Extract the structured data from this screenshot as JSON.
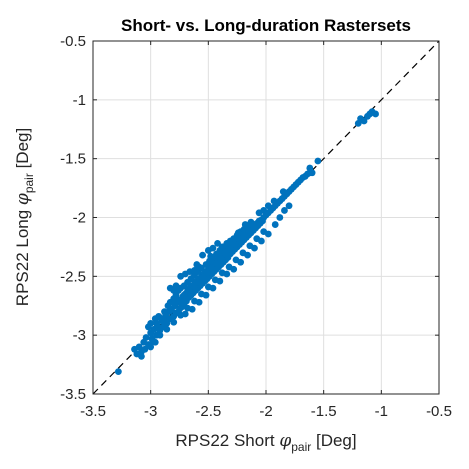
{
  "chart_data": {
    "type": "scatter",
    "title": "Short- vs. Long-duration Rastersets",
    "xlabel": {
      "prefix": "RPS22 Short ",
      "symbol": "φ",
      "subscript": "pair",
      "suffix": " [Deg]"
    },
    "ylabel": {
      "prefix": "RPS22 Long ",
      "symbol": "φ",
      "subscript": "pair",
      "suffix": " [Deg]"
    },
    "xlim": [
      -3.5,
      -0.5
    ],
    "ylim": [
      -3.5,
      -0.5
    ],
    "xticks": [
      -3.5,
      -3,
      -2.5,
      -2,
      -1.5,
      -1,
      -0.5
    ],
    "yticks": [
      -3.5,
      -3,
      -2.5,
      -2,
      -1.5,
      -1,
      -0.5
    ],
    "xtick_labels": [
      "-3.5",
      "-3",
      "-2.5",
      "-2",
      "-1.5",
      "-1",
      "-0.5"
    ],
    "ytick_labels": [
      "-3.5",
      "-3",
      "-2.5",
      "-2",
      "-1.5",
      "-1",
      "-0.5"
    ],
    "grid": true,
    "reference_line": {
      "style": "dashed",
      "color": "#000000",
      "from": [
        -3.5,
        -3.5
      ],
      "to": [
        -0.5,
        -0.5
      ]
    },
    "marker_color": "#0072BD",
    "points": [
      [
        -3.28,
        -3.31
      ],
      [
        -3.1,
        -3.1
      ],
      [
        -3.08,
        -3.14
      ],
      [
        -3.06,
        -3.06
      ],
      [
        -3.04,
        -3.02
      ],
      [
        -3.02,
        -3.08
      ],
      [
        -3.0,
        -2.98
      ],
      [
        -2.99,
        -3.03
      ],
      [
        -2.97,
        -2.95
      ],
      [
        -2.95,
        -3.0
      ],
      [
        -2.94,
        -2.92
      ],
      [
        -2.92,
        -2.96
      ],
      [
        -2.9,
        -2.88
      ],
      [
        -2.89,
        -2.93
      ],
      [
        -2.87,
        -2.85
      ],
      [
        -2.86,
        -2.9
      ],
      [
        -2.84,
        -2.8
      ],
      [
        -2.83,
        -2.86
      ],
      [
        -2.82,
        -2.78
      ],
      [
        -2.8,
        -2.84
      ],
      [
        -2.79,
        -2.75
      ],
      [
        -2.78,
        -2.81
      ],
      [
        -2.76,
        -2.72
      ],
      [
        -2.75,
        -2.78
      ],
      [
        -2.74,
        -2.7
      ],
      [
        -2.73,
        -2.76
      ],
      [
        -2.72,
        -2.67
      ],
      [
        -2.71,
        -2.73
      ],
      [
        -2.7,
        -2.65
      ],
      [
        -2.69,
        -2.71
      ],
      [
        -2.68,
        -2.62
      ],
      [
        -2.67,
        -2.68
      ],
      [
        -2.66,
        -2.6
      ],
      [
        -2.65,
        -2.66
      ],
      [
        -2.64,
        -2.58
      ],
      [
        -2.63,
        -2.64
      ],
      [
        -2.62,
        -2.56
      ],
      [
        -2.61,
        -2.62
      ],
      [
        -2.6,
        -2.54
      ],
      [
        -2.59,
        -2.6
      ],
      [
        -2.58,
        -2.52
      ],
      [
        -2.57,
        -2.58
      ],
      [
        -2.56,
        -2.5
      ],
      [
        -2.55,
        -2.56
      ],
      [
        -2.54,
        -2.48
      ],
      [
        -2.53,
        -2.54
      ],
      [
        -2.52,
        -2.46
      ],
      [
        -2.51,
        -2.52
      ],
      [
        -2.5,
        -2.44
      ],
      [
        -2.49,
        -2.5
      ],
      [
        -2.48,
        -2.42
      ],
      [
        -2.47,
        -2.48
      ],
      [
        -2.46,
        -2.4
      ],
      [
        -2.45,
        -2.46
      ],
      [
        -2.44,
        -2.38
      ],
      [
        -2.43,
        -2.44
      ],
      [
        -2.42,
        -2.36
      ],
      [
        -2.41,
        -2.42
      ],
      [
        -2.4,
        -2.34
      ],
      [
        -2.39,
        -2.4
      ],
      [
        -2.38,
        -2.32
      ],
      [
        -2.37,
        -2.38
      ],
      [
        -2.36,
        -2.3
      ],
      [
        -2.35,
        -2.36
      ],
      [
        -2.34,
        -2.28
      ],
      [
        -2.33,
        -2.34
      ],
      [
        -2.32,
        -2.26
      ],
      [
        -2.31,
        -2.31
      ],
      [
        -2.3,
        -2.25
      ],
      [
        -2.29,
        -2.29
      ],
      [
        -2.28,
        -2.23
      ],
      [
        -2.27,
        -2.27
      ],
      [
        -2.26,
        -2.21
      ],
      [
        -2.25,
        -2.25
      ],
      [
        -2.24,
        -2.19
      ],
      [
        -2.23,
        -2.23
      ],
      [
        -2.22,
        -2.17
      ],
      [
        -2.21,
        -2.21
      ],
      [
        -2.2,
        -2.16
      ],
      [
        -2.19,
        -2.19
      ],
      [
        -2.18,
        -2.14
      ],
      [
        -2.17,
        -2.17
      ],
      [
        -2.16,
        -2.12
      ],
      [
        -2.15,
        -2.15
      ],
      [
        -2.14,
        -2.1
      ],
      [
        -2.13,
        -2.13
      ],
      [
        -2.12,
        -2.09
      ],
      [
        -2.11,
        -2.11
      ],
      [
        -2.1,
        -2.07
      ],
      [
        -2.09,
        -2.09
      ],
      [
        -2.08,
        -2.05
      ],
      [
        -2.07,
        -2.07
      ],
      [
        -2.06,
        -2.03
      ],
      [
        -2.05,
        -2.05
      ],
      [
        -2.04,
        -2.02
      ],
      [
        -2.03,
        -2.03
      ],
      [
        -2.02,
        -2.0
      ],
      [
        -2.0,
        -1.98
      ],
      [
        -1.98,
        -1.96
      ],
      [
        -1.96,
        -1.94
      ],
      [
        -1.94,
        -1.92
      ],
      [
        -1.92,
        -1.9
      ],
      [
        -1.9,
        -1.88
      ],
      [
        -1.88,
        -1.86
      ],
      [
        -1.86,
        -1.84
      ],
      [
        -1.84,
        -1.82
      ],
      [
        -1.82,
        -1.8
      ],
      [
        -1.8,
        -1.78
      ],
      [
        -1.78,
        -1.76
      ],
      [
        -1.76,
        -1.74
      ],
      [
        -1.74,
        -1.72
      ],
      [
        -1.72,
        -1.7
      ],
      [
        -1.7,
        -1.68
      ],
      [
        -1.68,
        -1.66
      ],
      [
        -1.66,
        -1.65
      ],
      [
        -1.64,
        -1.63
      ],
      [
        -1.62,
        -1.62
      ],
      [
        -1.55,
        -1.52
      ],
      [
        -1.2,
        -1.2
      ],
      [
        -1.18,
        -1.16
      ],
      [
        -1.15,
        -1.18
      ],
      [
        -1.12,
        -1.14
      ],
      [
        -1.1,
        -1.12
      ],
      [
        -1.08,
        -1.1
      ],
      [
        -1.05,
        -1.12
      ],
      [
        -2.88,
        -2.8
      ],
      [
        -2.85,
        -2.75
      ],
      [
        -2.83,
        -2.72
      ],
      [
        -2.8,
        -2.69
      ],
      [
        -2.78,
        -2.66
      ],
      [
        -2.76,
        -2.62
      ],
      [
        -2.74,
        -2.6
      ],
      [
        -2.71,
        -2.58
      ],
      [
        -2.68,
        -2.55
      ],
      [
        -2.65,
        -2.52
      ],
      [
        -2.62,
        -2.49
      ],
      [
        -2.59,
        -2.46
      ],
      [
        -2.56,
        -2.43
      ],
      [
        -2.52,
        -2.4
      ],
      [
        -2.49,
        -2.37
      ],
      [
        -2.46,
        -2.34
      ],
      [
        -2.43,
        -2.31
      ],
      [
        -2.4,
        -2.28
      ],
      [
        -2.37,
        -2.25
      ],
      [
        -2.34,
        -2.22
      ],
      [
        -2.31,
        -2.2
      ],
      [
        -2.28,
        -2.18
      ],
      [
        -2.25,
        -2.15
      ],
      [
        -2.22,
        -2.12
      ],
      [
        -2.19,
        -2.1
      ],
      [
        -2.16,
        -2.07
      ],
      [
        -2.13,
        -2.04
      ],
      [
        -3.05,
        -3.12
      ],
      [
        -2.98,
        -3.05
      ],
      [
        -2.92,
        -3.0
      ],
      [
        -2.86,
        -2.95
      ],
      [
        -2.8,
        -2.89
      ],
      [
        -2.74,
        -2.83
      ],
      [
        -2.68,
        -2.77
      ],
      [
        -2.62,
        -2.71
      ],
      [
        -2.56,
        -2.65
      ],
      [
        -2.5,
        -2.59
      ],
      [
        -2.44,
        -2.53
      ],
      [
        -2.38,
        -2.47
      ],
      [
        -2.32,
        -2.42
      ],
      [
        -2.26,
        -2.36
      ],
      [
        -2.2,
        -2.3
      ],
      [
        -2.14,
        -2.24
      ],
      [
        -2.08,
        -2.18
      ],
      [
        -2.02,
        -2.12
      ],
      [
        -2.74,
        -2.5
      ],
      [
        -2.7,
        -2.48
      ],
      [
        -2.66,
        -2.46
      ],
      [
        -2.62,
        -2.45
      ],
      [
        -2.58,
        -2.42
      ],
      [
        -2.55,
        -2.32
      ],
      [
        -2.5,
        -2.28
      ],
      [
        -2.46,
        -2.26
      ],
      [
        -2.42,
        -2.22
      ],
      [
        -2.83,
        -2.6
      ],
      [
        -2.8,
        -2.62
      ],
      [
        -2.78,
        -2.58
      ],
      [
        -2.96,
        -2.86
      ],
      [
        -2.93,
        -2.84
      ],
      [
        -3.0,
        -2.9
      ],
      [
        -3.02,
        -2.93
      ],
      [
        -2.7,
        -2.82
      ],
      [
        -2.64,
        -2.78
      ],
      [
        -2.58,
        -2.72
      ],
      [
        -2.52,
        -2.66
      ],
      [
        -2.46,
        -2.6
      ],
      [
        -2.4,
        -2.54
      ],
      [
        -2.34,
        -2.48
      ],
      [
        -2.28,
        -2.44
      ],
      [
        -2.22,
        -2.38
      ],
      [
        -2.16,
        -2.32
      ],
      [
        -2.1,
        -2.26
      ],
      [
        -2.04,
        -2.2
      ],
      [
        -1.98,
        -2.14
      ],
      [
        -1.92,
        -2.06
      ],
      [
        -1.88,
        -2.0
      ],
      [
        -1.84,
        -1.94
      ],
      [
        -1.8,
        -1.9
      ],
      [
        -2.95,
        -2.9
      ],
      [
        -2.91,
        -2.86
      ],
      [
        -2.87,
        -2.83
      ],
      [
        -2.83,
        -2.79
      ],
      [
        -2.79,
        -2.74
      ],
      [
        -2.75,
        -2.7
      ],
      [
        -2.71,
        -2.66
      ],
      [
        -2.67,
        -2.62
      ],
      [
        -2.63,
        -2.58
      ],
      [
        -2.59,
        -2.55
      ],
      [
        -2.55,
        -2.51
      ],
      [
        -2.51,
        -2.47
      ],
      [
        -2.47,
        -2.43
      ],
      [
        -2.43,
        -2.39
      ],
      [
        -2.39,
        -2.35
      ],
      [
        -2.35,
        -2.31
      ],
      [
        -2.31,
        -2.27
      ],
      [
        -2.27,
        -2.23
      ],
      [
        -2.23,
        -2.19
      ],
      [
        -2.19,
        -2.15
      ],
      [
        -2.15,
        -2.11
      ],
      [
        -2.11,
        -2.07
      ],
      [
        -3.12,
        -3.16
      ],
      [
        -3.08,
        -3.18
      ],
      [
        -3.14,
        -3.12
      ],
      [
        -3.0,
        -3.1
      ],
      [
        -2.96,
        -3.06
      ],
      [
        -2.6,
        -2.4
      ],
      [
        -2.48,
        -2.33
      ],
      [
        -2.38,
        -2.25
      ],
      [
        -2.24,
        -2.13
      ],
      [
        -2.18,
        -2.06
      ],
      [
        -2.06,
        -1.96
      ],
      [
        -2.02,
        -1.94
      ],
      [
        -1.98,
        -1.9
      ],
      [
        -1.93,
        -1.86
      ],
      [
        -1.85,
        -1.78
      ],
      [
        -1.62,
        -1.58
      ],
      [
        -1.6,
        -1.62
      ]
    ]
  }
}
